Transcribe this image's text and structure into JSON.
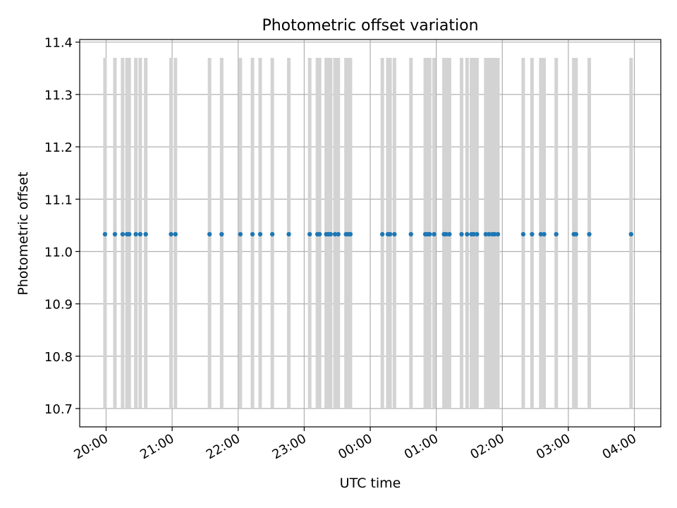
{
  "chart_data": {
    "type": "scatter",
    "title": "Photometric offset variation",
    "xlabel": "UTC time",
    "ylabel": "Photometric offset",
    "ylim": [
      10.665,
      11.405
    ],
    "xlim": [
      "19:36",
      "04:24"
    ],
    "x_axis_kind": "time",
    "grid": true,
    "legend": "none",
    "y_ticks": [
      "10.7",
      "10.8",
      "10.9",
      "11.0",
      "11.1",
      "11.2",
      "11.3",
      "11.4"
    ],
    "x_ticks": [
      "20:00",
      "21:00",
      "22:00",
      "23:00",
      "00:00",
      "01:00",
      "02:00",
      "03:00",
      "04:00"
    ],
    "series": [
      {
        "type": "scatter",
        "color": "#1f77b4",
        "x": [
          "19:59",
          "20:08",
          "20:15",
          "20:19",
          "20:21",
          "20:27",
          "20:31",
          "20:36",
          "20:59",
          "21:03",
          "21:34",
          "21:45",
          "22:02",
          "22:13",
          "22:20",
          "22:31",
          "22:46",
          "23:05",
          "23:12",
          "23:14",
          "23:20",
          "23:22",
          "23:24",
          "23:28",
          "23:31",
          "23:38",
          "23:40",
          "23:42",
          "00:11",
          "00:16",
          "00:18",
          "00:22",
          "00:37",
          "00:50",
          "00:52",
          "00:54",
          "00:58",
          "01:07",
          "01:09",
          "01:12",
          "01:23",
          "01:28",
          "01:32",
          "01:34",
          "01:37",
          "01:45",
          "01:48",
          "01:51",
          "01:53",
          "01:56",
          "02:19",
          "02:27",
          "02:35",
          "02:38",
          "02:49",
          "03:05",
          "03:07",
          "03:19",
          "03:57"
        ],
        "y": [
          11.033,
          11.033,
          11.033,
          11.033,
          11.033,
          11.033,
          11.033,
          11.033,
          11.033,
          11.033,
          11.033,
          11.033,
          11.033,
          11.033,
          11.033,
          11.033,
          11.033,
          11.033,
          11.033,
          11.033,
          11.033,
          11.033,
          11.033,
          11.033,
          11.033,
          11.033,
          11.033,
          11.033,
          11.033,
          11.033,
          11.033,
          11.033,
          11.033,
          11.033,
          11.033,
          11.033,
          11.033,
          11.033,
          11.033,
          11.033,
          11.033,
          11.033,
          11.033,
          11.033,
          11.033,
          11.033,
          11.033,
          11.033,
          11.033,
          11.033,
          11.033,
          11.033,
          11.033,
          11.033,
          11.033,
          11.033,
          11.033,
          11.033,
          11.033
        ]
      },
      {
        "type": "errorbar",
        "color": "#d3d3d3",
        "x": [
          "19:59",
          "20:08",
          "20:15",
          "20:19",
          "20:21",
          "20:27",
          "20:31",
          "20:36",
          "20:59",
          "21:03",
          "21:34",
          "21:45",
          "22:02",
          "22:13",
          "22:20",
          "22:31",
          "22:46",
          "23:05",
          "23:12",
          "23:14",
          "23:20",
          "23:22",
          "23:24",
          "23:28",
          "23:31",
          "23:38",
          "23:40",
          "23:42",
          "00:11",
          "00:16",
          "00:18",
          "00:22",
          "00:37",
          "00:50",
          "00:52",
          "00:54",
          "00:58",
          "01:07",
          "01:09",
          "01:12",
          "01:23",
          "01:28",
          "01:32",
          "01:34",
          "01:37",
          "01:45",
          "01:48",
          "01:51",
          "01:53",
          "01:56",
          "02:19",
          "02:27",
          "02:35",
          "02:38",
          "02:49",
          "03:05",
          "03:07",
          "03:19",
          "03:57"
        ],
        "low": 10.7,
        "high": 11.37
      }
    ]
  }
}
